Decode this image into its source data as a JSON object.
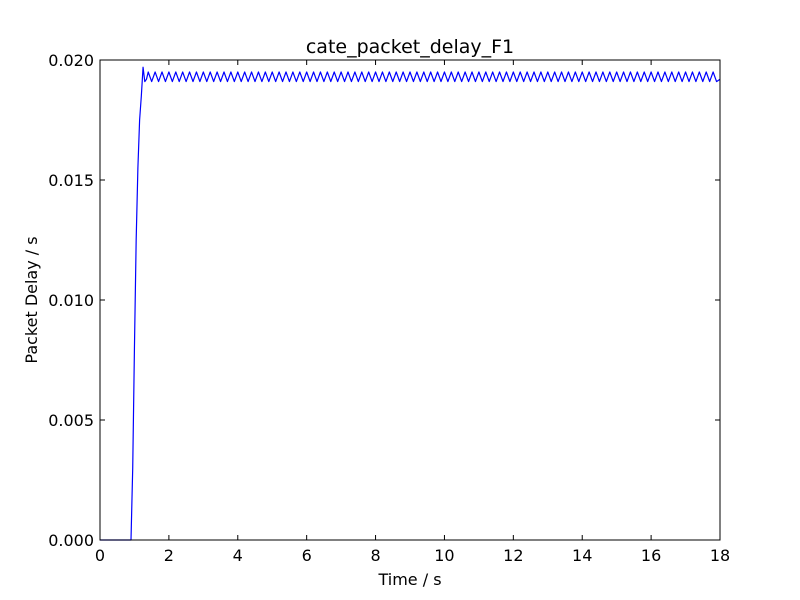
{
  "chart_data": {
    "type": "line",
    "title": "cate_packet_delay_F1",
    "xlabel": "Time / s",
    "ylabel": "Packet Delay / s",
    "xlim": [
      0,
      18
    ],
    "ylim": [
      0.0,
      0.02
    ],
    "grid": false,
    "x_ticks": [
      {
        "value": 0,
        "label": "0"
      },
      {
        "value": 2,
        "label": "2"
      },
      {
        "value": 4,
        "label": "4"
      },
      {
        "value": 6,
        "label": "6"
      },
      {
        "value": 8,
        "label": "8"
      },
      {
        "value": 10,
        "label": "10"
      },
      {
        "value": 12,
        "label": "12"
      },
      {
        "value": 14,
        "label": "14"
      },
      {
        "value": 16,
        "label": "16"
      },
      {
        "value": 18,
        "label": "18"
      }
    ],
    "y_ticks": [
      {
        "value": 0.0,
        "label": "0.000"
      },
      {
        "value": 0.005,
        "label": "0.005"
      },
      {
        "value": 0.01,
        "label": "0.010"
      },
      {
        "value": 0.015,
        "label": "0.015"
      },
      {
        "value": 0.02,
        "label": "0.020"
      }
    ],
    "series": [
      {
        "color": "#0000ff",
        "x": [
          0.0,
          0.9,
          0.95,
          1.0,
          1.05,
          1.1,
          1.15,
          1.2,
          1.25,
          1.3,
          1.35,
          1.4,
          1.5,
          1.6,
          1.7,
          1.8,
          1.9,
          2.0,
          2.1,
          2.2,
          2.3,
          2.4,
          2.5,
          2.6,
          2.7,
          2.8,
          2.9,
          3.0,
          3.1,
          3.2,
          3.3,
          3.4,
          3.5,
          3.6,
          3.7,
          3.8,
          3.9,
          4.0,
          4.1,
          4.2,
          4.3,
          4.4,
          4.5,
          4.6,
          4.7,
          4.8,
          4.9,
          5.0,
          5.1,
          5.2,
          5.3,
          5.4,
          5.5,
          5.6,
          5.7,
          5.8,
          5.9,
          6.0,
          6.1,
          6.2,
          6.3,
          6.4,
          6.5,
          6.6,
          6.7,
          6.8,
          6.9,
          7.0,
          7.1,
          7.2,
          7.3,
          7.4,
          7.5,
          7.6,
          7.7,
          7.8,
          7.9,
          8.0,
          8.1,
          8.2,
          8.3,
          8.4,
          8.5,
          8.6,
          8.7,
          8.8,
          8.9,
          9.0,
          9.1,
          9.2,
          9.3,
          9.4,
          9.5,
          9.6,
          9.7,
          9.8,
          9.9,
          10.0,
          10.1,
          10.2,
          10.3,
          10.4,
          10.5,
          10.6,
          10.7,
          10.8,
          10.9,
          11.0,
          11.1,
          11.2,
          11.3,
          11.4,
          11.5,
          11.6,
          11.7,
          11.8,
          11.9,
          12.0,
          12.1,
          12.2,
          12.3,
          12.4,
          12.5,
          12.6,
          12.7,
          12.8,
          12.9,
          13.0,
          13.1,
          13.2,
          13.3,
          13.4,
          13.5,
          13.6,
          13.7,
          13.8,
          13.9,
          14.0,
          14.1,
          14.2,
          14.3,
          14.4,
          14.5,
          14.6,
          14.7,
          14.8,
          14.9,
          15.0,
          15.1,
          15.2,
          15.3,
          15.4,
          15.5,
          15.6,
          15.7,
          15.8,
          15.9,
          16.0,
          16.1,
          16.2,
          16.3,
          16.4,
          16.5,
          16.6,
          16.7,
          16.8,
          16.9,
          17.0,
          17.1,
          17.2,
          17.3,
          17.4,
          17.5,
          17.6,
          17.7,
          17.8,
          17.9,
          18.0
        ],
        "y": [
          0.0,
          0.0,
          0.003,
          0.008,
          0.0125,
          0.0155,
          0.0175,
          0.0185,
          0.0197,
          0.0191,
          0.0192,
          0.0195,
          0.0191,
          0.0195,
          0.0191,
          0.0195,
          0.0191,
          0.0195,
          0.0191,
          0.0195,
          0.0191,
          0.0195,
          0.0191,
          0.0195,
          0.0191,
          0.0195,
          0.0191,
          0.0195,
          0.0191,
          0.0195,
          0.0191,
          0.0195,
          0.0191,
          0.0195,
          0.0191,
          0.0195,
          0.0191,
          0.0195,
          0.0191,
          0.0195,
          0.0191,
          0.0195,
          0.0191,
          0.0195,
          0.0191,
          0.0195,
          0.0191,
          0.0195,
          0.0191,
          0.0195,
          0.0191,
          0.0195,
          0.0191,
          0.0195,
          0.0191,
          0.0195,
          0.0191,
          0.0195,
          0.0191,
          0.0195,
          0.0191,
          0.0195,
          0.0191,
          0.0195,
          0.0191,
          0.0195,
          0.0191,
          0.0195,
          0.0191,
          0.0195,
          0.0191,
          0.0195,
          0.0191,
          0.0195,
          0.0191,
          0.0195,
          0.0191,
          0.0195,
          0.0191,
          0.0195,
          0.0191,
          0.0195,
          0.0191,
          0.0195,
          0.0191,
          0.0195,
          0.0191,
          0.0195,
          0.0191,
          0.0195,
          0.0191,
          0.0195,
          0.0191,
          0.0195,
          0.0191,
          0.0195,
          0.0191,
          0.0195,
          0.0191,
          0.0195,
          0.0191,
          0.0195,
          0.0191,
          0.0195,
          0.0191,
          0.0195,
          0.0191,
          0.0195,
          0.0191,
          0.0195,
          0.0191,
          0.0195,
          0.0191,
          0.0195,
          0.0191,
          0.0195,
          0.0191,
          0.0195,
          0.0191,
          0.0195,
          0.0191,
          0.0195,
          0.0191,
          0.0195,
          0.0191,
          0.0195,
          0.0191,
          0.0195,
          0.0191,
          0.0195,
          0.0191,
          0.0195,
          0.0191,
          0.0195,
          0.0191,
          0.0195,
          0.0191,
          0.0195,
          0.0191,
          0.0195,
          0.0191,
          0.0195,
          0.0191,
          0.0195,
          0.0191,
          0.0195,
          0.0191,
          0.0195,
          0.0191,
          0.0195,
          0.0191,
          0.0195,
          0.0191,
          0.0195,
          0.0191,
          0.0195,
          0.0191,
          0.0195,
          0.0191,
          0.0195,
          0.0191,
          0.0195,
          0.0191,
          0.0195,
          0.0191,
          0.0195,
          0.0191,
          0.0195,
          0.0191,
          0.0195,
          0.0191,
          0.0195,
          0.0191,
          0.0195,
          0.0191,
          0.0195,
          0.0191,
          0.0192
        ]
      }
    ]
  }
}
